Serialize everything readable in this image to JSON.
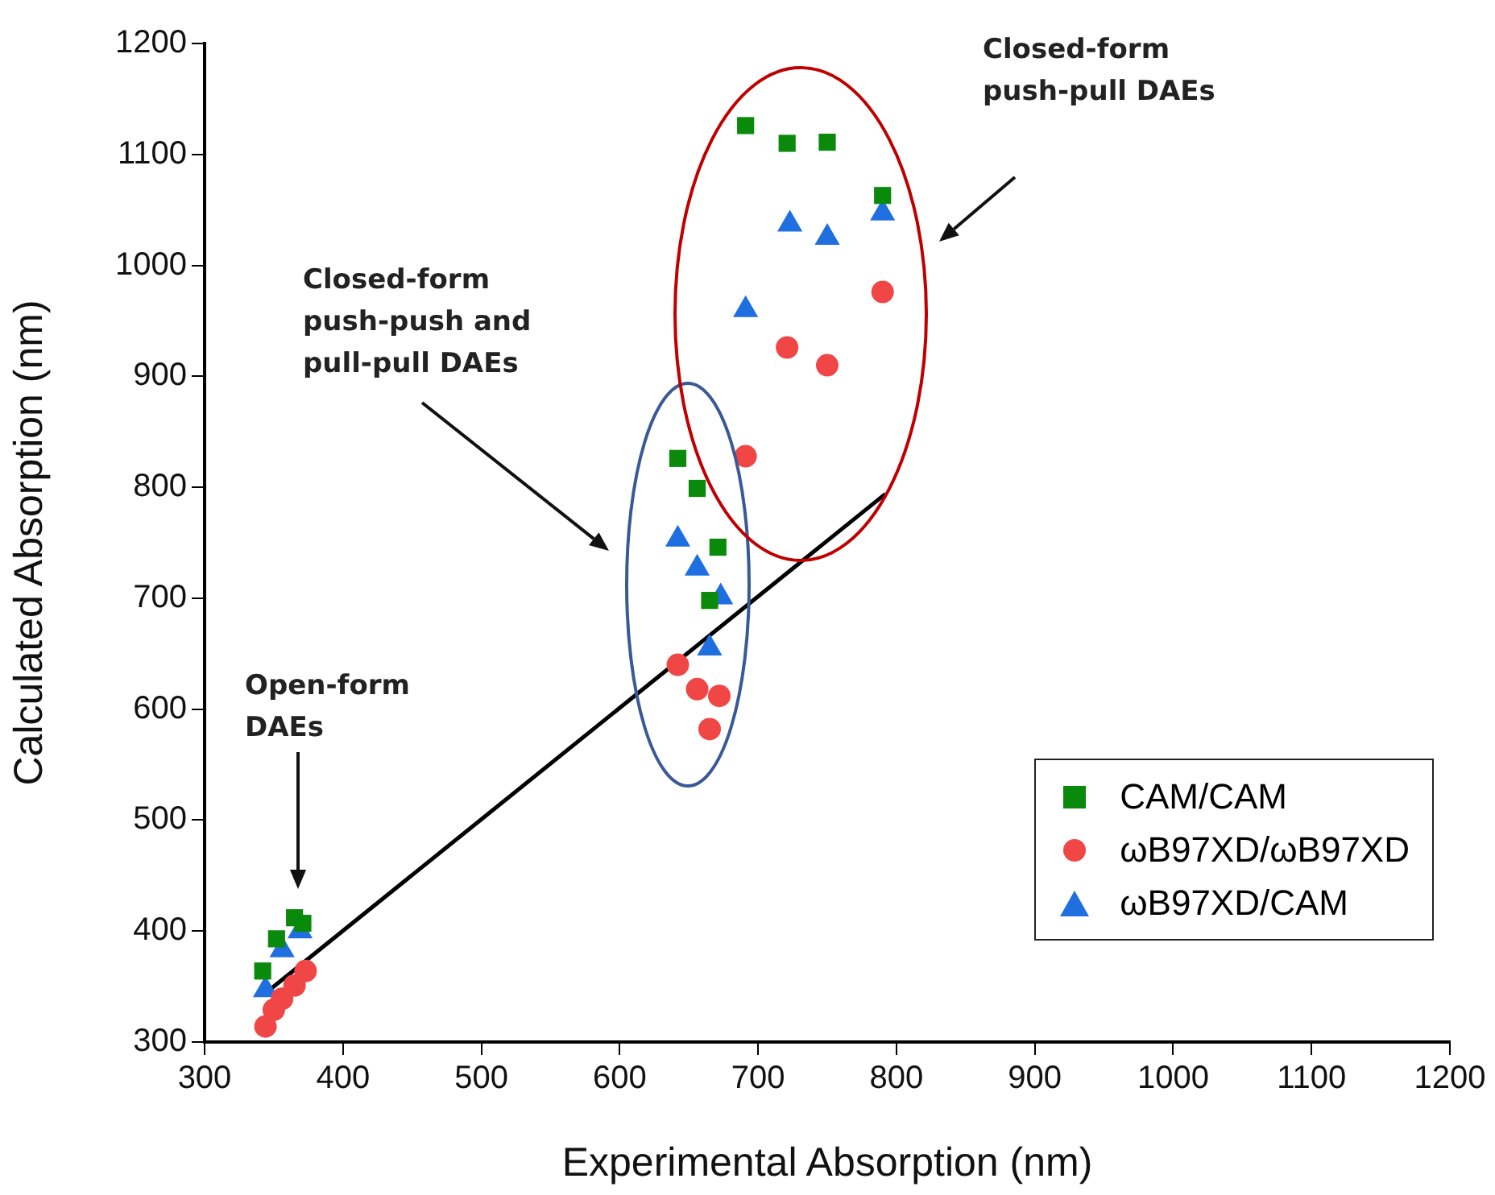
{
  "chart_data": {
    "type": "scatter",
    "xlabel": "Experimental Absorption (nm)",
    "ylabel": "Calculated Absorption (nm)",
    "xlim": [
      300,
      1200
    ],
    "xticks": [
      300,
      400,
      500,
      600,
      700,
      800,
      900,
      1000,
      1100,
      1200
    ],
    "ylim": [
      300,
      1200
    ],
    "yticks": [
      300,
      400,
      500,
      600,
      700,
      800,
      900,
      1000,
      1100,
      1200
    ],
    "grid": false,
    "legend": "bottom right",
    "series": [
      {
        "name": "CAM/CAM",
        "color": "#0a8a0a",
        "marker": "square",
        "x": [
          342,
          352,
          365,
          371,
          642,
          656,
          671,
          665,
          691,
          721,
          750,
          790
        ],
        "values": [
          364,
          393,
          412,
          407,
          826,
          799,
          746,
          698,
          1126,
          1110,
          1111,
          1063
        ]
      },
      {
        "name": "ωB97XD/ωB97XD",
        "color": "#f04646",
        "marker": "circle",
        "x": [
          344,
          350,
          356,
          365,
          373,
          642,
          656,
          672,
          665,
          691,
          721,
          750,
          790
        ],
        "values": [
          314,
          329,
          339,
          351,
          364,
          640,
          618,
          612,
          582,
          828,
          926,
          910,
          976
        ]
      },
      {
        "name": "ωB97XD/CAM",
        "color": "#1f6fe0",
        "marker": "triangle",
        "x": [
          344,
          356,
          369,
          642,
          656,
          673,
          665,
          691,
          723,
          750,
          790
        ],
        "values": [
          347,
          383,
          400,
          753,
          727,
          701,
          655,
          960,
          1037,
          1025,
          1047
        ]
      },
      {
        "type": "line",
        "color": "#000000",
        "marker": "none",
        "x": [
          345,
          792
        ],
        "values": [
          345,
          794
        ]
      }
    ],
    "annotations": [
      "Open-form DAEs",
      "Closed-form push-push and pull-pull DAEs",
      "Closed-form push-pull DAEs"
    ]
  }
}
